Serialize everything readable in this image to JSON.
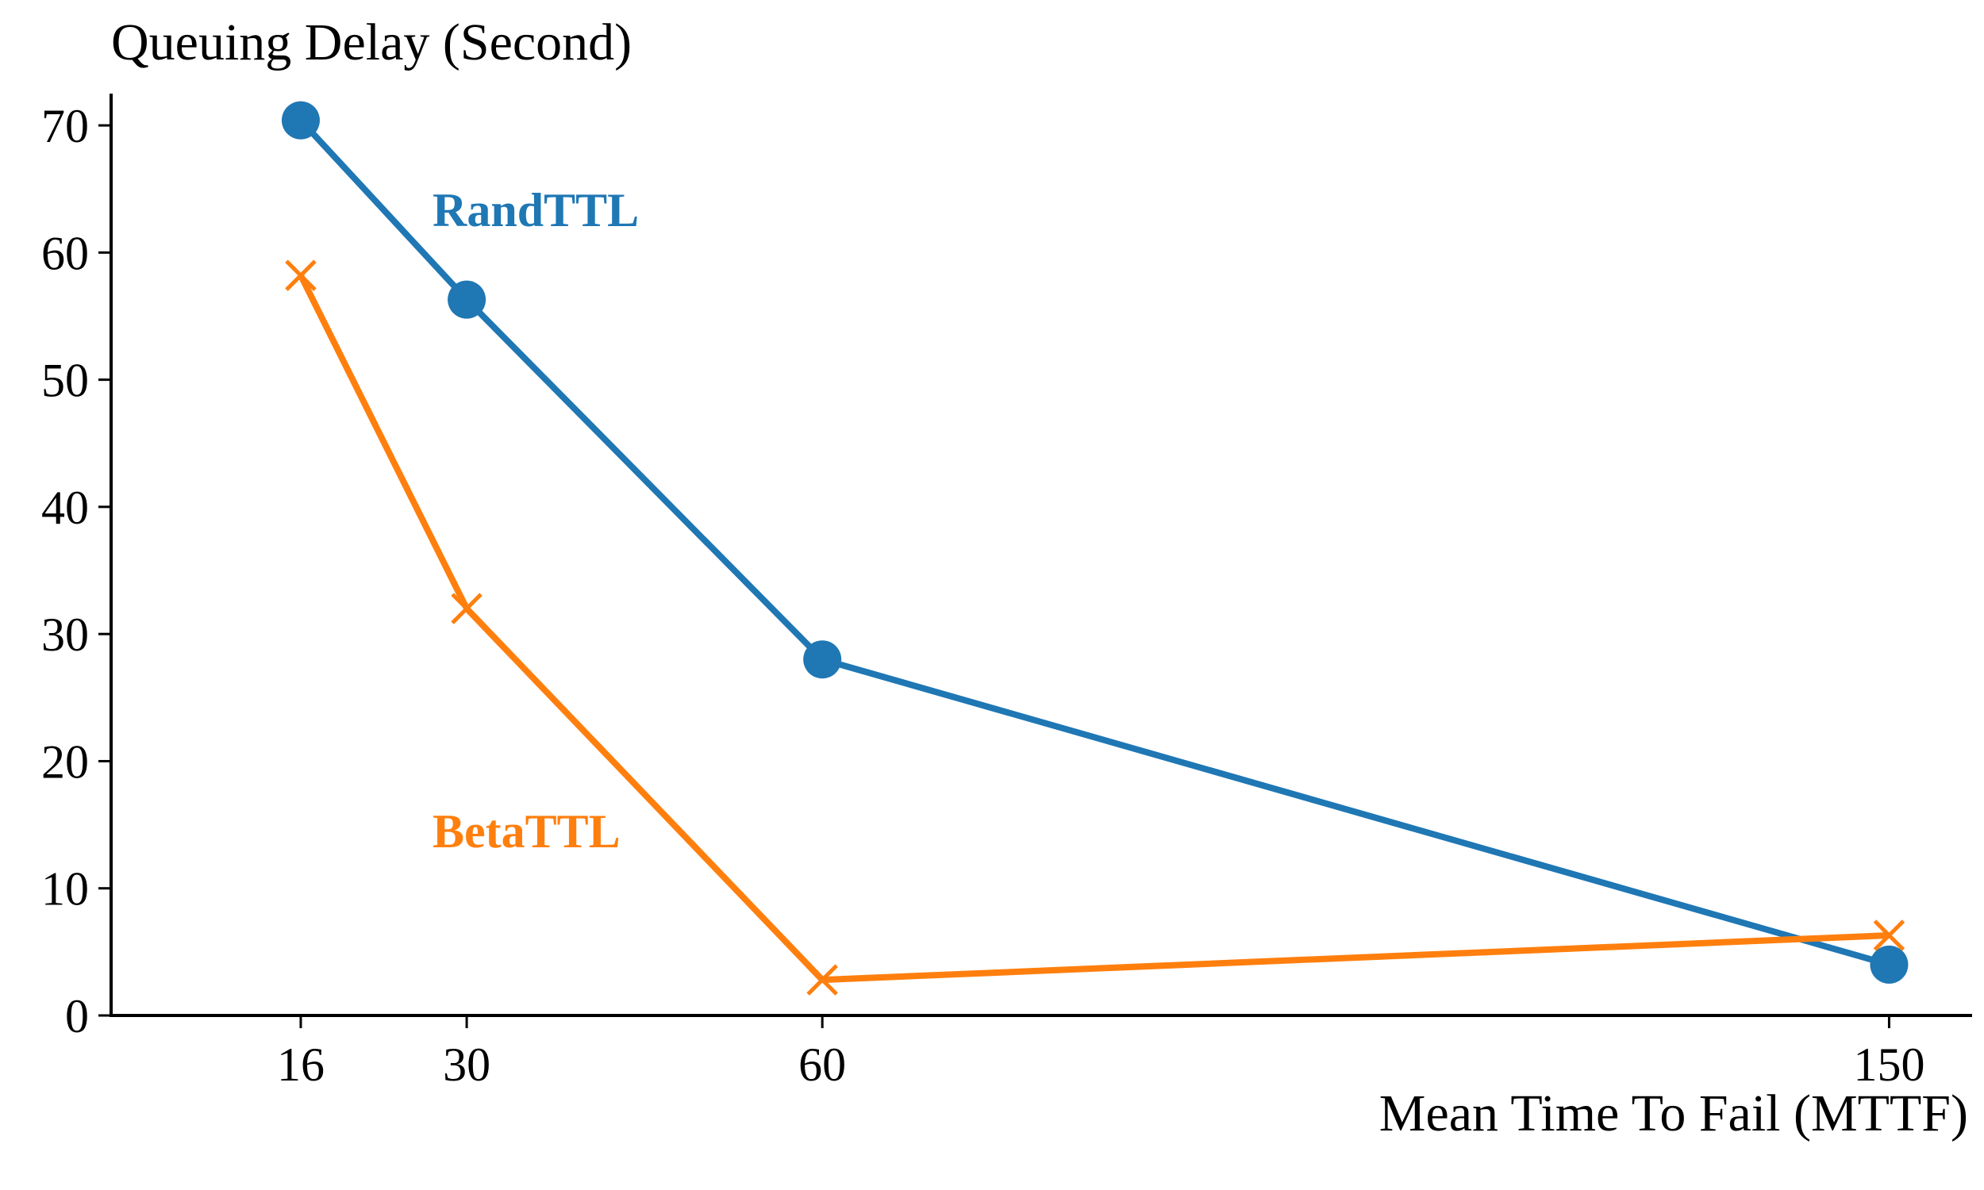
{
  "chart_data": {
    "type": "line",
    "ylabel": "Queuing Delay (Second)",
    "xlabel": "Mean Time To Fail (MTTF)",
    "x": [
      16,
      30,
      60,
      150
    ],
    "x_ticks": [
      16,
      30,
      60,
      150
    ],
    "xlim": [
      0,
      157
    ],
    "ylim": [
      0,
      72.5
    ],
    "y_ticks": [
      0,
      10,
      20,
      30,
      40,
      50,
      60,
      70
    ],
    "grid": false,
    "legend": "inline labels",
    "series": [
      {
        "name": "RandTTL",
        "values": [
          70.4,
          56.3,
          28.0,
          4.0
        ],
        "color": "#1f77b4",
        "marker": "circle"
      },
      {
        "name": "BetaTTL",
        "values": [
          58.2,
          32.0,
          2.8,
          6.3
        ],
        "color": "#ff7f0e",
        "marker": "x"
      }
    ]
  }
}
